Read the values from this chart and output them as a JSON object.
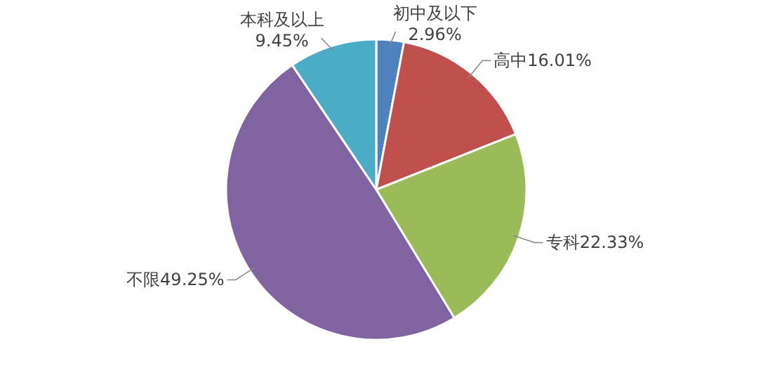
{
  "chart_data": {
    "type": "pie",
    "categories": [
      "初中及以下",
      "高中",
      "专科",
      "不限",
      "本科及以上"
    ],
    "values": [
      2.96,
      16.01,
      22.33,
      49.25,
      9.45
    ],
    "value_labels": [
      "2.96%",
      "16.01%",
      "22.33%",
      "49.25%",
      "9.45%"
    ],
    "colors": [
      "#4f81bd",
      "#c0504d",
      "#9bbb59",
      "#8064a2",
      "#4bacc6"
    ]
  }
}
